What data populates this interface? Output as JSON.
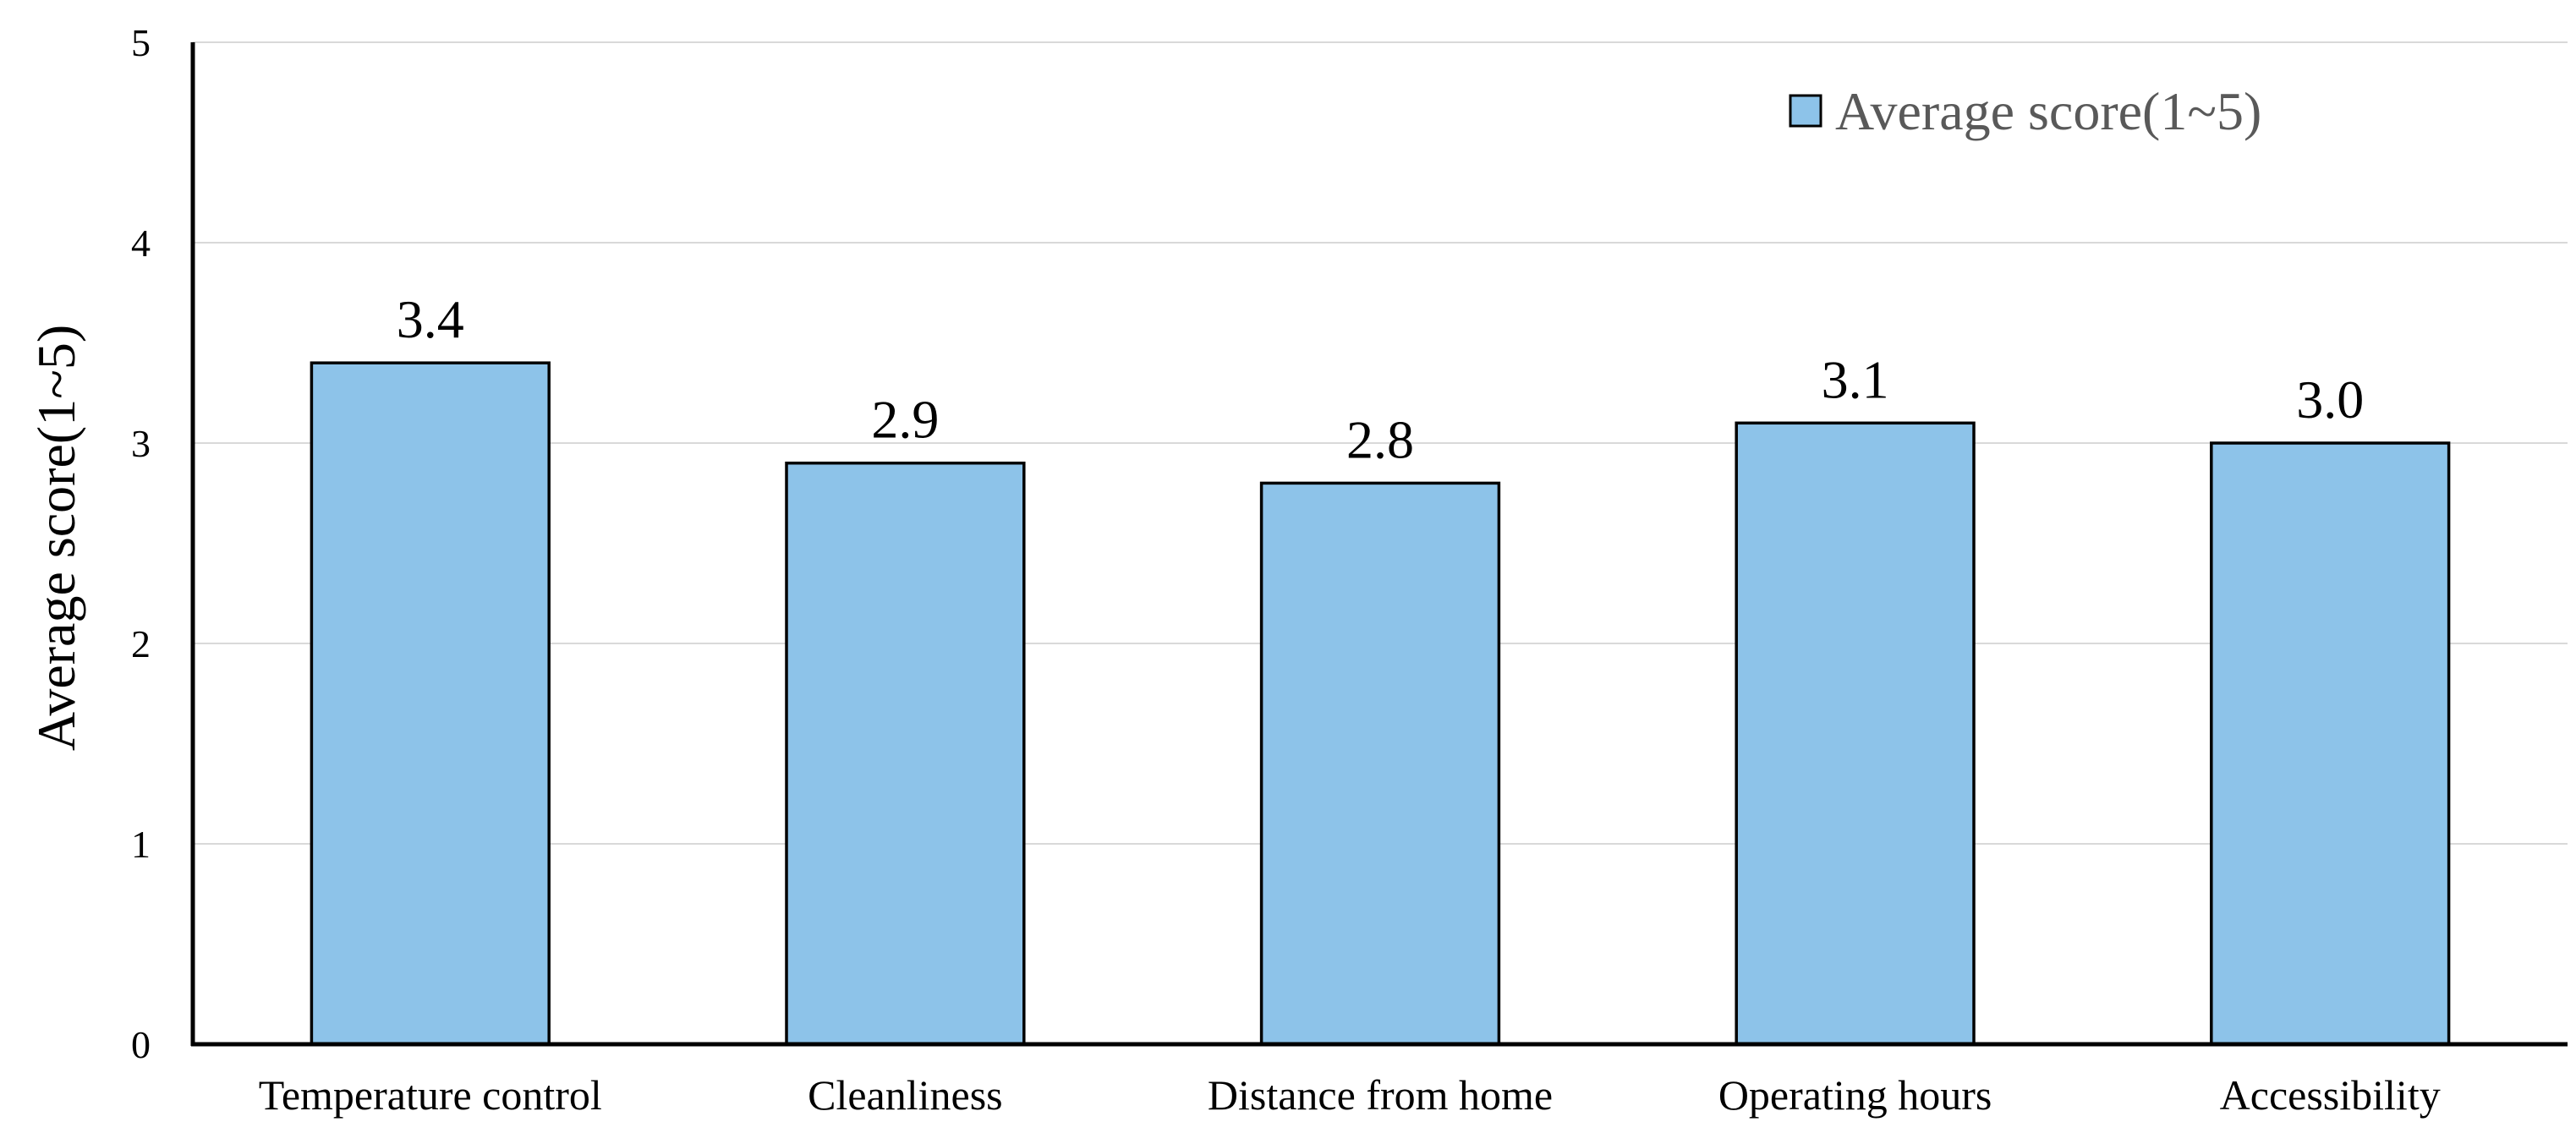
{
  "chart_data": {
    "type": "bar",
    "categories": [
      "Temperature control",
      "Cleanliness",
      "Distance from home",
      "Operating hours",
      "Accessibility"
    ],
    "series": [
      {
        "name": "Average score(1~5)",
        "values": [
          3.4,
          2.9,
          2.8,
          3.1,
          3.0
        ],
        "data_labels": [
          "3.4",
          "2.9",
          "2.8",
          "3.1",
          "3.0"
        ],
        "color": "#8dc3e9"
      }
    ],
    "title": "",
    "xlabel": "",
    "ylabel": "Average score(1~5)",
    "ylim": [
      0,
      5
    ],
    "yticks": [
      "0",
      "1",
      "2",
      "3",
      "4",
      "5"
    ],
    "grid": true,
    "legend_position": "top-right"
  }
}
